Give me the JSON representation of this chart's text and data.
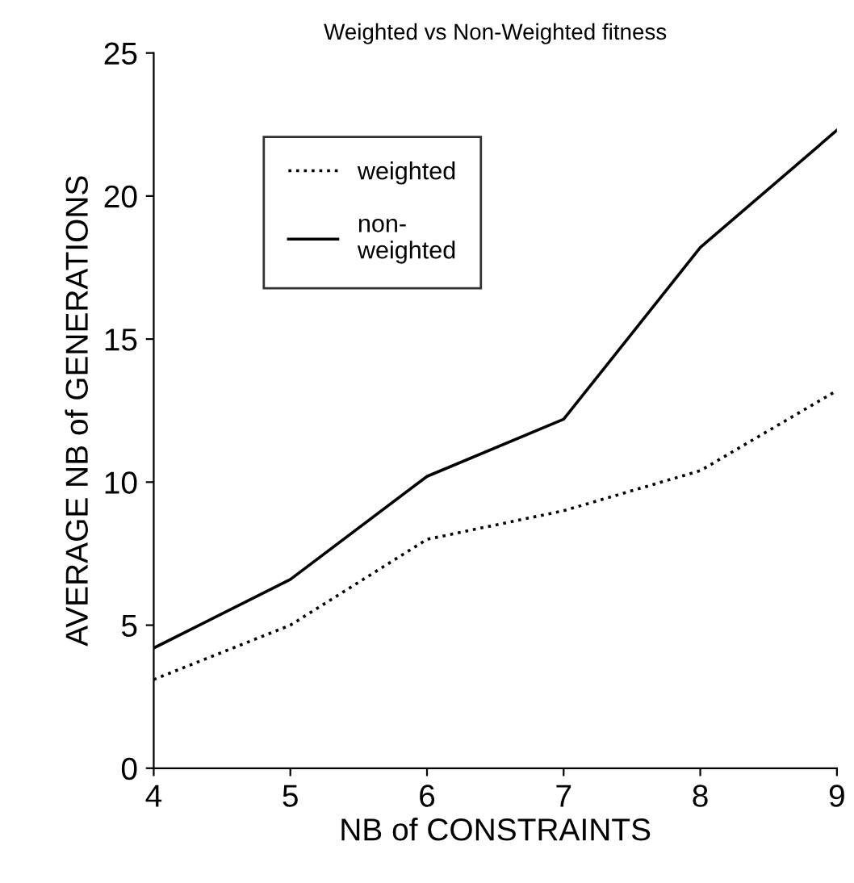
{
  "chart_data": {
    "type": "line",
    "title": "Weighted vs Non-Weighted fitness",
    "xlabel": "NB of CONSTRAINTS",
    "ylabel": "AVERAGE NB of GENERATIONS",
    "x": [
      4,
      5,
      6,
      7,
      8,
      9
    ],
    "series": [
      {
        "name": "weighted",
        "color": "#000000",
        "line_style": "dotted",
        "values": [
          3.1,
          5.0,
          8.0,
          9.0,
          10.4,
          13.2
        ]
      },
      {
        "name": "non-\nweighted",
        "color": "#000000",
        "line_style": "solid",
        "values": [
          4.2,
          6.6,
          10.2,
          12.2,
          18.2,
          22.3
        ]
      }
    ],
    "xlim": [
      4,
      9
    ],
    "xticks": [
      4,
      5,
      6,
      7,
      8,
      9
    ],
    "ylim": [
      0,
      25
    ],
    "yticks": [
      0,
      5,
      10,
      15,
      20,
      25
    ],
    "grid": false,
    "legend": "top",
    "marker": "none"
  }
}
